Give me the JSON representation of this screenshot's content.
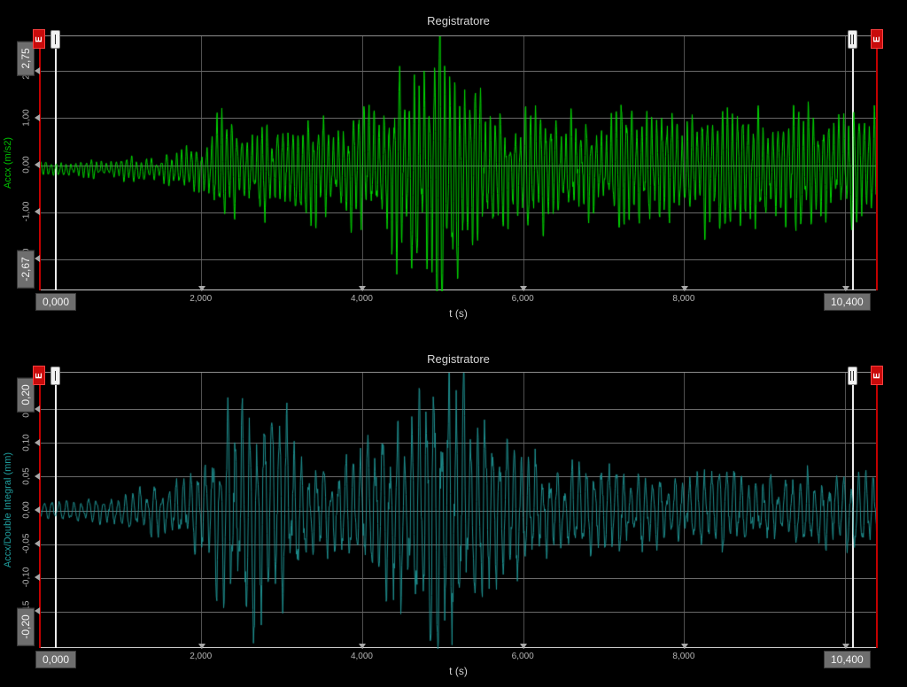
{
  "chart_data": [
    {
      "type": "line",
      "title": "Registratore",
      "xlabel": "t (s)",
      "ylabel": "Accx (m/s2)",
      "series_color": "#00d800",
      "ylabel_color": "#00c200",
      "xlim": [
        0,
        10.4
      ],
      "ylim": [
        -2.67,
        2.75
      ],
      "grid": true,
      "x_axis": {
        "min_badge": "0,000",
        "max_badge": "10,400",
        "ticks": [
          {
            "v": 2,
            "label": "2,000"
          },
          {
            "v": 4,
            "label": "4,000"
          },
          {
            "v": 6,
            "label": "6,000"
          },
          {
            "v": 8,
            "label": "8,000"
          },
          {
            "v": 10,
            "label": ""
          }
        ]
      },
      "y_axis": {
        "max_badge": "2,75",
        "min_badge": "-2,67",
        "ticks": [
          {
            "v": 2,
            "label": "2,00"
          },
          {
            "v": 1,
            "label": "1,00"
          },
          {
            "v": 0,
            "label": "0,00"
          },
          {
            "v": -1,
            "label": "-1,00"
          },
          {
            "v": -2,
            "label": "-2,00"
          }
        ]
      },
      "cursors": {
        "left": {
          "label": "I",
          "t": 0.2
        },
        "right": {
          "label": "II",
          "t": 10.1
        },
        "start_edge": {
          "label": "E",
          "t": 0
        },
        "end_edge": {
          "label": "E",
          "t": 10.4
        }
      },
      "signal": {
        "freq_hz": 16,
        "baseline": -0.07,
        "beat_hz": 1.8,
        "beat_depth": 0.15,
        "noise": 0.12,
        "seed": 1337,
        "envelope": [
          [
            0,
            0.13
          ],
          [
            0.8,
            0.16
          ],
          [
            1.3,
            0.2
          ],
          [
            1.7,
            0.28
          ],
          [
            1.95,
            0.45
          ],
          [
            2.15,
            0.7
          ],
          [
            2.35,
            0.85
          ],
          [
            2.55,
            0.7
          ],
          [
            2.8,
            0.82
          ],
          [
            3.05,
            0.88
          ],
          [
            3.3,
            0.75
          ],
          [
            3.55,
            0.88
          ],
          [
            3.75,
            0.8
          ],
          [
            3.95,
            1.0
          ],
          [
            4.2,
            1.2
          ],
          [
            4.45,
            1.5
          ],
          [
            4.65,
            1.85
          ],
          [
            4.85,
            2.3
          ],
          [
            5.0,
            2.65
          ],
          [
            5.15,
            2.2
          ],
          [
            5.3,
            1.65
          ],
          [
            5.5,
            1.25
          ],
          [
            5.7,
            1.05
          ],
          [
            6.0,
            0.95
          ],
          [
            6.4,
            1.05
          ],
          [
            6.8,
            0.95
          ],
          [
            7.2,
            1.0
          ],
          [
            7.6,
            1.05
          ],
          [
            8.0,
            0.95
          ],
          [
            8.4,
            1.0
          ],
          [
            8.8,
            1.05
          ],
          [
            9.2,
            0.98
          ],
          [
            9.6,
            1.02
          ],
          [
            10.0,
            1.0
          ],
          [
            10.4,
            1.05
          ]
        ]
      }
    },
    {
      "type": "line",
      "title": "Registratore",
      "xlabel": "t (s)",
      "ylabel": "Accx/Double Integral (mm)",
      "series_color": "#1e8f8f",
      "ylabel_color": "#1f9e9e",
      "xlim": [
        0,
        10.4
      ],
      "ylim": [
        -0.205,
        0.205
      ],
      "grid": true,
      "x_axis": {
        "min_badge": "0,000",
        "max_badge": "10,400",
        "ticks": [
          {
            "v": 2,
            "label": "2,000"
          },
          {
            "v": 4,
            "label": "4,000"
          },
          {
            "v": 6,
            "label": "6,000"
          },
          {
            "v": 8,
            "label": "8,000"
          },
          {
            "v": 10,
            "label": ""
          }
        ]
      },
      "y_axis": {
        "max_badge": "0,20",
        "min_badge": "-0,20",
        "ticks": [
          {
            "v": 0.15,
            "label": "0,15"
          },
          {
            "v": 0.1,
            "label": "0,10"
          },
          {
            "v": 0.05,
            "label": "0,05"
          },
          {
            "v": 0,
            "label": "0,00"
          },
          {
            "v": -0.05,
            "label": "-0,05"
          },
          {
            "v": -0.1,
            "label": "-0,10"
          },
          {
            "v": -0.15,
            "label": "-0,15"
          }
        ]
      },
      "cursors": {
        "left": {
          "label": "I",
          "t": 0.2
        },
        "right": {
          "label": "II",
          "t": 10.1
        },
        "start_edge": {
          "label": "E",
          "t": 0
        },
        "end_edge": {
          "label": "E",
          "t": 10.4
        }
      },
      "signal": {
        "freq_hz": 11,
        "baseline": 0,
        "beat_hz": 0.7,
        "beat_depth": 0.1,
        "noise": 0.22,
        "seed": 777,
        "envelope": [
          [
            0,
            0.008
          ],
          [
            0.5,
            0.013
          ],
          [
            1.0,
            0.02
          ],
          [
            1.5,
            0.028
          ],
          [
            1.85,
            0.04
          ],
          [
            2.05,
            0.07
          ],
          [
            2.25,
            0.12
          ],
          [
            2.45,
            0.155
          ],
          [
            2.65,
            0.14
          ],
          [
            2.9,
            0.115
          ],
          [
            3.15,
            0.09
          ],
          [
            3.45,
            0.06
          ],
          [
            3.75,
            0.065
          ],
          [
            4.05,
            0.075
          ],
          [
            4.35,
            0.09
          ],
          [
            4.6,
            0.12
          ],
          [
            4.8,
            0.16
          ],
          [
            5.0,
            0.2
          ],
          [
            5.15,
            0.18
          ],
          [
            5.35,
            0.13
          ],
          [
            5.6,
            0.095
          ],
          [
            5.9,
            0.075
          ],
          [
            6.3,
            0.06
          ],
          [
            6.7,
            0.055
          ],
          [
            7.1,
            0.05
          ],
          [
            7.5,
            0.047
          ],
          [
            8.0,
            0.044
          ],
          [
            8.5,
            0.046
          ],
          [
            9.0,
            0.042
          ],
          [
            9.5,
            0.045
          ],
          [
            10.0,
            0.04
          ],
          [
            10.4,
            0.042
          ]
        ]
      }
    }
  ]
}
